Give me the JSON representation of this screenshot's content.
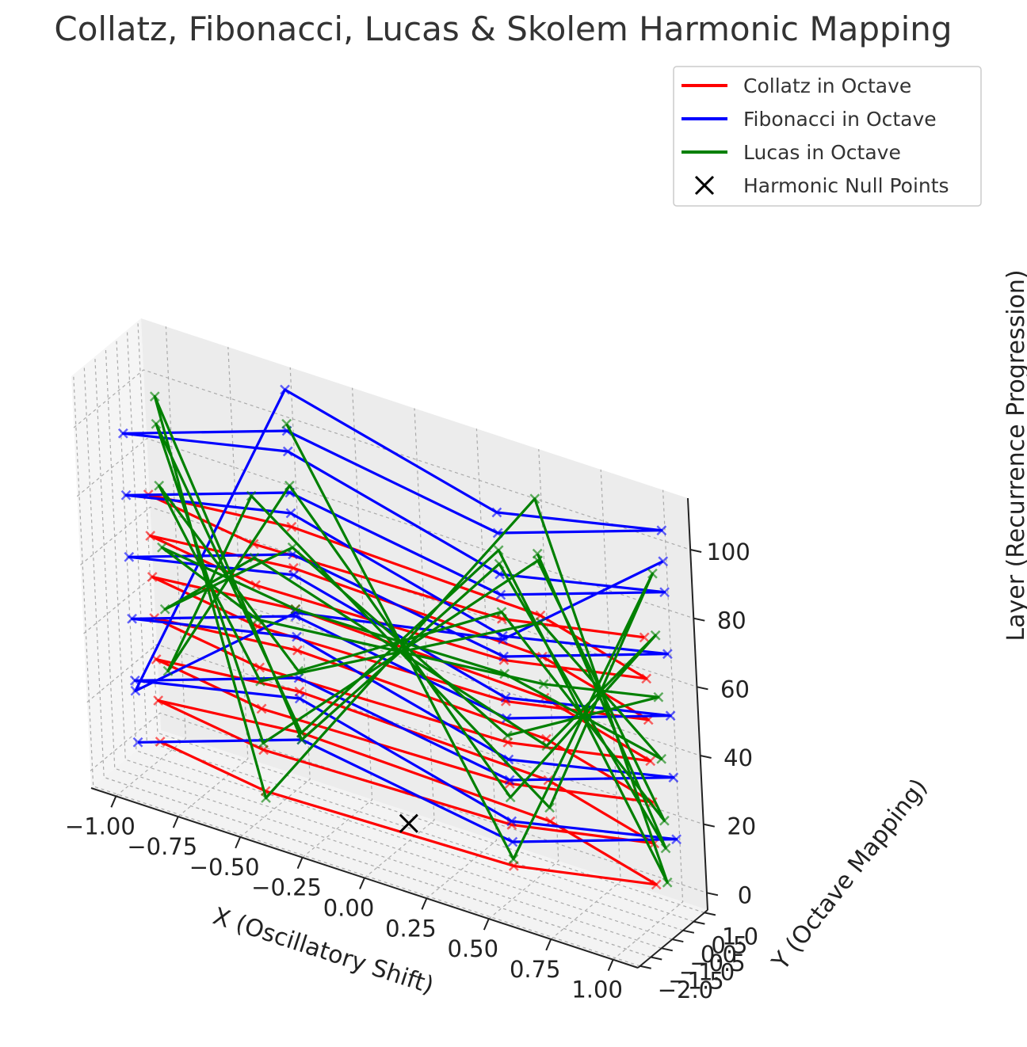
{
  "chart_data": {
    "type": "3d-line",
    "title": "Collatz, Fibonacci, Lucas & Skolem Harmonic Mapping",
    "xlabel": "X (Oscillatory Shift)",
    "ylabel": "Y (Octave Mapping)",
    "zlabel": "Layer (Recurrence Progression)",
    "x_ticks": [
      "−1.00",
      "−0.75",
      "−0.50",
      "−0.25",
      "0.00",
      "0.25",
      "0.50",
      "0.75",
      "1.00"
    ],
    "y_ticks": [
      "−2.0",
      "−1.5",
      "−1.0",
      "−0.5",
      "0.0",
      "0.5",
      "1.0"
    ],
    "z_ticks": [
      "0",
      "20",
      "40",
      "60",
      "80",
      "100"
    ],
    "xlim": [
      -1.1,
      1.1
    ],
    "ylim": [
      -2.1,
      1.15
    ],
    "zlim": [
      -5,
      115
    ],
    "grid": true,
    "legend_position": "top-right",
    "legend": [
      {
        "label": "Collatz in Octave",
        "color": "#ff0000",
        "kind": "line"
      },
      {
        "label": "Fibonacci in Octave",
        "color": "#0000ff",
        "kind": "line"
      },
      {
        "label": "Lucas in Octave",
        "color": "#008000",
        "kind": "line"
      },
      {
        "label": "Harmonic Null Points",
        "color": "#000000",
        "kind": "marker"
      }
    ],
    "series": [
      {
        "name": "Collatz in Octave",
        "color": "#ff0000",
        "x": [
          -1.0,
          -0.5,
          0.5,
          1.0,
          0.5,
          -0.5,
          -1.0,
          -0.5,
          0.5,
          1.0,
          0.5,
          -0.5,
          -1.0,
          -0.5,
          0.5,
          1.0,
          0.5,
          -0.5,
          -1.0,
          -0.5,
          0.5,
          1.0,
          0.5,
          -0.5,
          -1.0,
          -0.5,
          0.5,
          1.0,
          0.5,
          -0.5,
          -1.0,
          -0.5,
          0.5,
          1.0,
          0.5,
          -0.5,
          -1.0,
          -0.5,
          0.5,
          1.0
        ],
        "y": [
          0.0,
          -0.866,
          -0.866,
          0.0,
          0.866,
          0.866,
          0.0,
          -0.866,
          -0.866,
          0.0,
          0.866,
          0.866,
          0.0,
          -0.866,
          -0.866,
          0.0,
          0.866,
          0.866,
          0.0,
          -0.866,
          -0.866,
          0.0,
          0.866,
          0.866,
          0.0,
          -0.866,
          -0.866,
          0.0,
          0.866,
          0.866,
          0.0,
          -0.866,
          -0.866,
          0.0,
          0.866,
          0.866,
          0.0,
          -0.866,
          -0.866,
          0.0
        ],
        "z": [
          0,
          2,
          4,
          6,
          8,
          10,
          12,
          14,
          16,
          18,
          20,
          22,
          24,
          26,
          28,
          30,
          32,
          34,
          36,
          38,
          40,
          42,
          44,
          46,
          48,
          50,
          52,
          54,
          56,
          58,
          60,
          62,
          64,
          66,
          68,
          70,
          72,
          74,
          76,
          78
        ]
      },
      {
        "name": "Fibonacci in Octave",
        "color": "#0000ff",
        "x": [
          -1.0,
          -0.5,
          0.5,
          1.0,
          0.5,
          -0.5,
          -1.0,
          -0.5,
          0.5,
          1.0,
          0.5,
          -0.5,
          -1.0,
          -0.5,
          0.5,
          1.0,
          0.5,
          -0.5,
          -1.0,
          -0.5,
          0.5,
          1.0,
          0.5,
          -0.5,
          -1.0,
          -0.5,
          0.5,
          1.0,
          0.5,
          -0.5,
          -1.0,
          -0.5,
          0.5,
          1.0,
          0.5,
          -0.5,
          -1.0,
          -0.5,
          0.5,
          1.0
        ],
        "y": [
          -1.0,
          0.866,
          -0.866,
          1.0,
          -0.866,
          0.866,
          -1.0,
          0.866,
          -0.866,
          1.0,
          -0.866,
          0.866,
          -1.0,
          0.866,
          -0.866,
          1.0,
          -0.866,
          0.866,
          -1.0,
          0.866,
          -0.866,
          1.0,
          -0.866,
          0.866,
          -1.0,
          0.866,
          -0.866,
          1.0,
          -0.866,
          0.866,
          -1.0,
          0.866,
          -0.866,
          1.0,
          -0.866,
          0.866,
          -1.0,
          0.866,
          -0.866,
          1.0
        ],
        "z": [
          5,
          8,
          11,
          14,
          17,
          20,
          23,
          26,
          29,
          32,
          35,
          38,
          41,
          44,
          47,
          50,
          53,
          56,
          59,
          62,
          65,
          68,
          71,
          74,
          77,
          80,
          83,
          86,
          89,
          92,
          95,
          98,
          101,
          104,
          107,
          110,
          20,
          45,
          70,
          95
        ]
      },
      {
        "name": "Lucas in Octave",
        "color": "#008000",
        "x": [
          -0.5,
          0.5,
          1.0,
          0.5,
          -0.5,
          -1.0,
          -0.5,
          0.5,
          1.0,
          0.5,
          -0.5,
          -1.0,
          -0.5,
          0.5,
          1.0,
          0.5,
          -0.5,
          -1.0,
          -0.5,
          0.5,
          1.0,
          0.5,
          -0.5,
          -1.0,
          -0.5,
          0.5,
          1.0,
          0.5,
          -0.5,
          -1.0,
          -0.5,
          0.5,
          1.0,
          0.5,
          -0.5,
          -1.0,
          -0.5,
          0.5,
          1.0,
          0.5
        ],
        "y": [
          0.866,
          -0.866,
          0.5,
          0.866,
          -0.866,
          0.5,
          0.866,
          -0.866,
          0.5,
          0.866,
          -0.866,
          0.5,
          0.866,
          -0.866,
          0.5,
          0.866,
          -0.866,
          0.5,
          0.866,
          -0.866,
          0.5,
          0.866,
          -0.866,
          0.5,
          0.866,
          -0.866,
          0.5,
          0.866,
          -0.866,
          0.5,
          0.866,
          -0.866,
          0.5,
          0.866,
          -0.866,
          0.5,
          0.866,
          -0.866,
          0.5,
          0.866
        ],
        "z": [
          100,
          6,
          94,
          12,
          88,
          18,
          82,
          24,
          76,
          30,
          70,
          36,
          64,
          42,
          58,
          48,
          52,
          54,
          46,
          60,
          40,
          66,
          34,
          72,
          28,
          78,
          22,
          84,
          16,
          90,
          10,
          96,
          4,
          102,
          0,
          98,
          8,
          92,
          14,
          86
        ]
      }
    ],
    "null_points": {
      "name": "Harmonic Null Points",
      "color": "#000000",
      "x": [
        0.0
      ],
      "y": [
        0.0
      ],
      "z": [
        0
      ]
    }
  }
}
